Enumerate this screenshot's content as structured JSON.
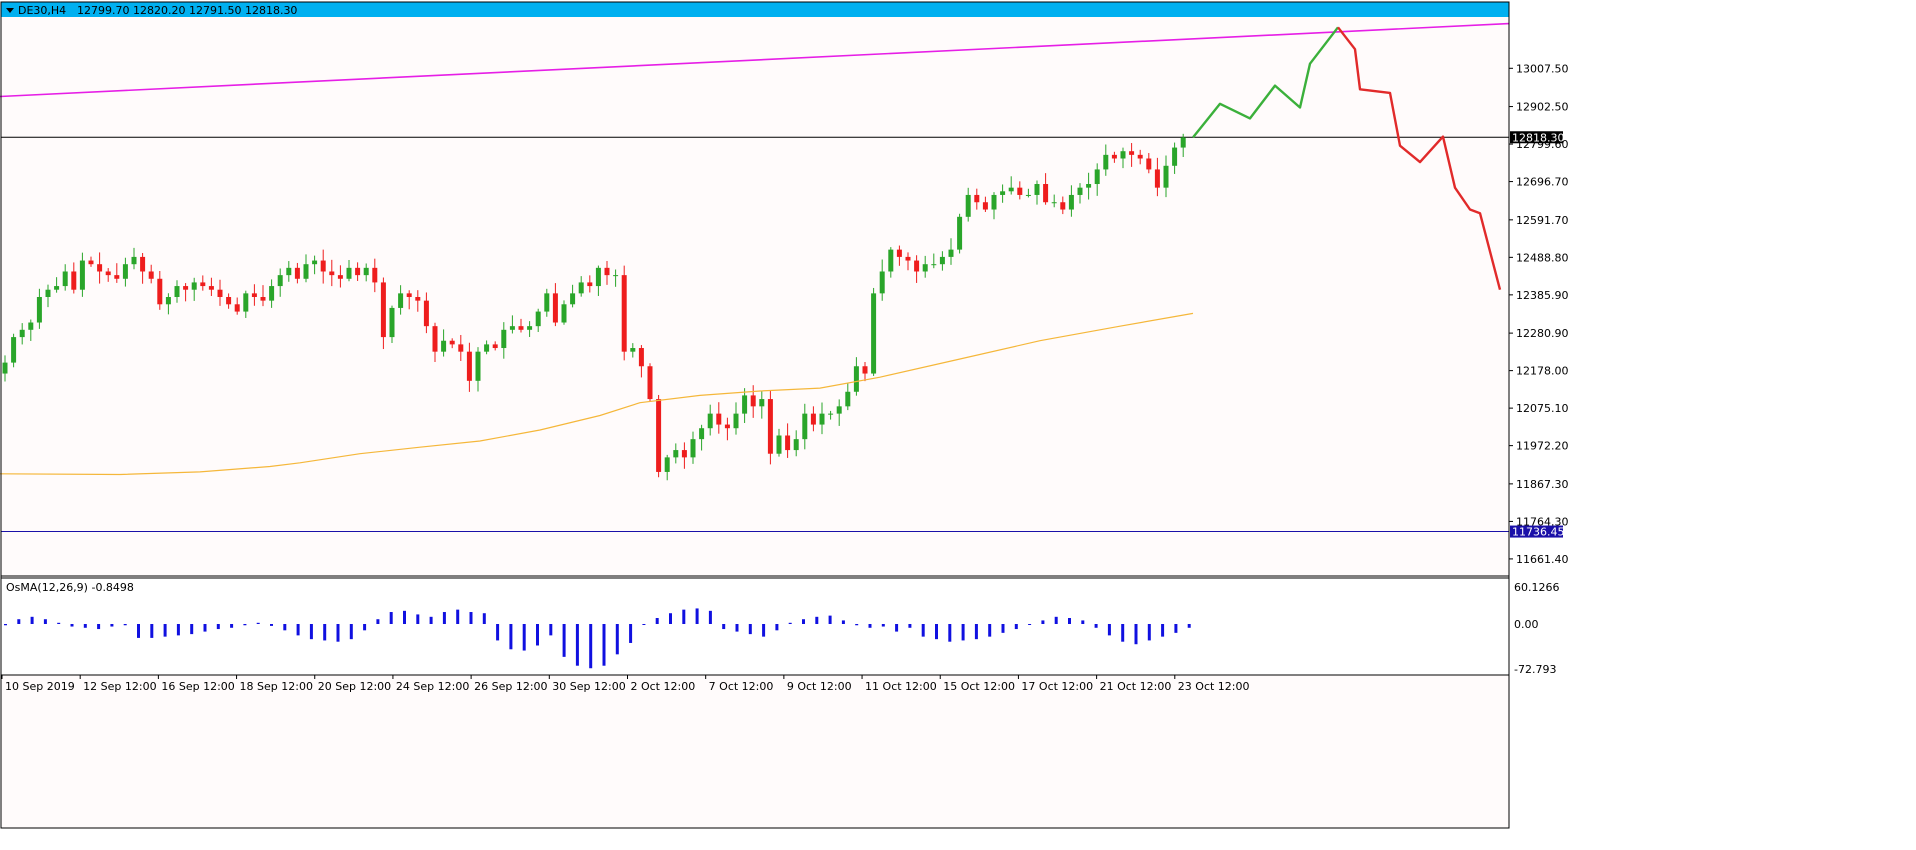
{
  "header": {
    "title": "DE30,H4",
    "ohlc": "12799.70 12820.20 12791.50 12818.30",
    "arrow": "chevron-down-icon"
  },
  "indicator": {
    "title": "OsMA(12,26,9) -0.8498"
  },
  "colors": {
    "background": "#fffbfb",
    "bull": "#2aa52a",
    "bear": "#ee1d1d",
    "header_bar": "#00b0f0",
    "trend_line": "#e61ee6",
    "ma_line": "#f5b73a",
    "level_line": "#1a10a8",
    "projection_up": "#3bb03b",
    "projection_down": "#e12a2a",
    "osma_bar": "#1010e0"
  },
  "chart_data": [
    {
      "type": "candlestick",
      "symbol": "DE30",
      "timeframe": "H4",
      "ylim": [
        11620,
        13140
      ],
      "y_ticks": [
        "13007.50",
        "12902.50",
        "12799.60",
        "12696.70",
        "12591.70",
        "12488.80",
        "12385.90",
        "12280.90",
        "12178.00",
        "12075.10",
        "11972.20",
        "11867.30",
        "11764.30",
        "11661.40"
      ],
      "x_ticks": [
        "10 Sep 2019",
        "12 Sep 12:00",
        "16 Sep 12:00",
        "18 Sep 12:00",
        "20 Sep 12:00",
        "24 Sep 12:00",
        "26 Sep 12:00",
        "30 Sep 12:00",
        "2 Oct 12:00",
        "7 Oct 12:00",
        "9 Oct 12:00",
        "11 Oct 12:00",
        "15 Oct 12:00",
        "17 Oct 12:00",
        "21 Oct 12:00",
        "23 Oct 12:00"
      ],
      "current_price": "12818.30",
      "support_level": "11736.45",
      "closes": [
        12200,
        12270,
        12290,
        12310,
        12380,
        12400,
        12410,
        12450,
        12400,
        12480,
        12470,
        12450,
        12440,
        12430,
        12470,
        12490,
        12450,
        12430,
        12360,
        12380,
        12410,
        12400,
        12420,
        12410,
        12400,
        12380,
        12360,
        12340,
        12390,
        12380,
        12370,
        12410,
        12440,
        12460,
        12430,
        12470,
        12480,
        12450,
        12440,
        12430,
        12460,
        12440,
        12460,
        12420,
        12270,
        12350,
        12390,
        12380,
        12370,
        12300,
        12230,
        12260,
        12250,
        12230,
        12150,
        12230,
        12250,
        12240,
        12290,
        12300,
        12290,
        12300,
        12340,
        12390,
        12310,
        12360,
        12390,
        12420,
        12410,
        12460,
        12440,
        12440,
        12230,
        12240,
        12190,
        12100,
        11900,
        11940,
        11960,
        11940,
        11990,
        12020,
        12060,
        12030,
        12020,
        12060,
        12110,
        12080,
        12100,
        11950,
        12000,
        11960,
        11990,
        12060,
        12030,
        12060,
        12060,
        12080,
        12120,
        12190,
        12170,
        12390,
        12450,
        12510,
        12490,
        12480,
        12450,
        12470,
        12470,
        12490,
        12510,
        12600,
        12660,
        12640,
        12620,
        12660,
        12670,
        12680,
        12660,
        12660,
        12690,
        12640,
        12640,
        12620,
        12660,
        12680,
        12690,
        12730,
        12770,
        12760,
        12780,
        12770,
        12760,
        12730,
        12680,
        12740,
        12790,
        12818
      ],
      "osma": [
        -2,
        8,
        12,
        8,
        2,
        -4,
        -6,
        -8,
        -4,
        -2,
        -22,
        -22,
        -20,
        -18,
        -16,
        -12,
        -8,
        -6,
        -2,
        2,
        -3,
        -10,
        -18,
        -24,
        -26,
        -28,
        -24,
        -10,
        8,
        20,
        22,
        16,
        12,
        20,
        24,
        20,
        18,
        -26,
        -40,
        -42,
        -34,
        -18,
        -52,
        -66,
        -70,
        -66,
        -48,
        -30,
        0,
        10,
        18,
        24,
        26,
        22,
        -8,
        -12,
        -16,
        -20,
        -10,
        2,
        8,
        12,
        14,
        6,
        -2,
        -6,
        -4,
        -12,
        -6,
        -20,
        -24,
        -28,
        -26,
        -24,
        -20,
        -14,
        -8,
        0,
        6,
        12,
        10,
        6,
        -6,
        -18,
        -28,
        -32,
        -26,
        -20,
        -14,
        -6
      ],
      "ma_line": [
        [
          0,
          11895
        ],
        [
          120,
          11893
        ],
        [
          200,
          11900
        ],
        [
          270,
          11915
        ],
        [
          300,
          11925
        ],
        [
          360,
          11950
        ],
        [
          420,
          11968
        ],
        [
          480,
          11985
        ],
        [
          540,
          12015
        ],
        [
          600,
          12055
        ],
        [
          640,
          12090
        ],
        [
          700,
          12110
        ],
        [
          760,
          12122
        ],
        [
          820,
          12130
        ],
        [
          880,
          12160
        ],
        [
          960,
          12210
        ],
        [
          1040,
          12260
        ],
        [
          1120,
          12300
        ],
        [
          1193,
          12335
        ]
      ],
      "trend_line": [
        [
          0,
          12930
        ],
        [
          1509,
          13130
        ]
      ],
      "projection_up": [
        [
          1193,
          12818
        ],
        [
          1220,
          12910
        ],
        [
          1250,
          12870
        ],
        [
          1275,
          12960
        ],
        [
          1300,
          12900
        ],
        [
          1310,
          13020
        ],
        [
          1338,
          13120
        ]
      ],
      "projection_down": [
        [
          1338,
          13120
        ],
        [
          1355,
          13060
        ],
        [
          1360,
          12950
        ],
        [
          1390,
          12940
        ],
        [
          1400,
          12795
        ],
        [
          1420,
          12750
        ],
        [
          1443,
          12820
        ],
        [
          1455,
          12680
        ],
        [
          1470,
          12620
        ],
        [
          1480,
          12610
        ],
        [
          1500,
          12400
        ]
      ]
    }
  ]
}
